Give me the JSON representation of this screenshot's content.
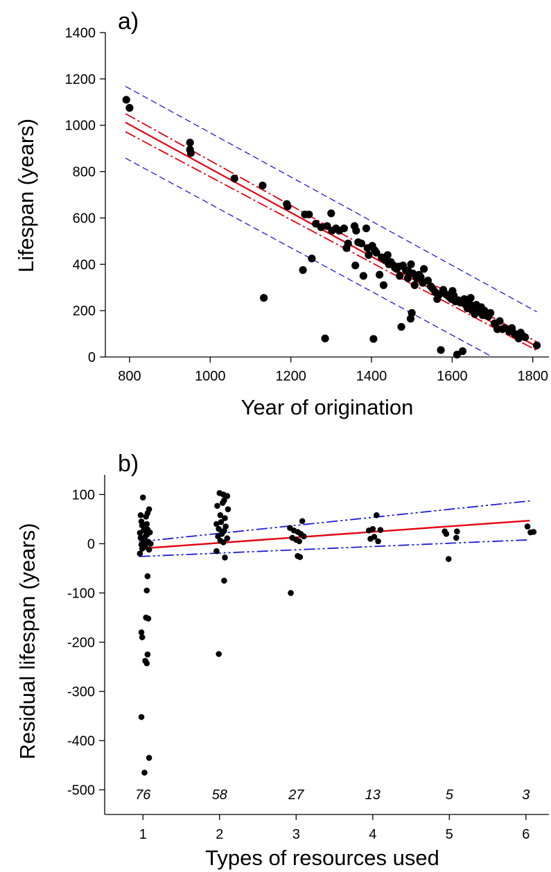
{
  "chart_data": [
    {
      "panel_label": "a)",
      "type": "scatter",
      "xlabel": "Year of origination",
      "ylabel": "Lifespan (years)",
      "xlim": [
        740,
        1840
      ],
      "ylim": [
        0,
        1400
      ],
      "xticks": [
        "800",
        "1000",
        "1200",
        "1400",
        "1600",
        "1800"
      ],
      "yticks": [
        "0",
        "200",
        "400",
        "600",
        "800",
        "1000",
        "1200",
        "1400"
      ],
      "grid": false,
      "colors": {
        "points": "#000000",
        "fit": "#e3000f",
        "ci": "#e3000f",
        "pi": "#1a1adc"
      },
      "fit_line": {
        "x": [
          790,
          1810
        ],
        "y": [
          1012,
          45
        ]
      },
      "confidence_band": {
        "upper": {
          "x": [
            790,
            1810
          ],
          "y": [
            1050,
            65
          ]
        },
        "lower": {
          "x": [
            790,
            1810
          ],
          "y": [
            972,
            28
          ]
        }
      },
      "prediction_band": {
        "upper": {
          "x": [
            790,
            1810
          ],
          "y": [
            1168,
            195
          ]
        },
        "lower": {
          "x": [
            790,
            1700
          ],
          "y": [
            858,
            0
          ]
        }
      },
      "points": [
        [
          792,
          1110
        ],
        [
          800,
          1075
        ],
        [
          950,
          925
        ],
        [
          950,
          895
        ],
        [
          952,
          880
        ],
        [
          1060,
          770
        ],
        [
          1130,
          740
        ],
        [
          1133,
          255
        ],
        [
          1190,
          660
        ],
        [
          1192,
          650
        ],
        [
          1230,
          375
        ],
        [
          1235,
          615
        ],
        [
          1245,
          615
        ],
        [
          1252,
          425
        ],
        [
          1262,
          575
        ],
        [
          1275,
          560
        ],
        [
          1285,
          80
        ],
        [
          1290,
          565
        ],
        [
          1300,
          620
        ],
        [
          1302,
          545
        ],
        [
          1312,
          555
        ],
        [
          1320,
          545
        ],
        [
          1332,
          555
        ],
        [
          1338,
          470
        ],
        [
          1342,
          490
        ],
        [
          1358,
          565
        ],
        [
          1362,
          545
        ],
        [
          1360,
          395
        ],
        [
          1367,
          495
        ],
        [
          1375,
          490
        ],
        [
          1380,
          350
        ],
        [
          1387,
          555
        ],
        [
          1390,
          470
        ],
        [
          1393,
          440
        ],
        [
          1402,
          480
        ],
        [
          1405,
          78
        ],
        [
          1408,
          460
        ],
        [
          1412,
          450
        ],
        [
          1420,
          355
        ],
        [
          1425,
          430
        ],
        [
          1430,
          310
        ],
        [
          1432,
          420
        ],
        [
          1440,
          440
        ],
        [
          1443,
          400
        ],
        [
          1448,
          410
        ],
        [
          1455,
          395
        ],
        [
          1458,
          385
        ],
        [
          1462,
          380
        ],
        [
          1468,
          390
        ],
        [
          1470,
          350
        ],
        [
          1474,
          130
        ],
        [
          1478,
          395
        ],
        [
          1485,
          375
        ],
        [
          1490,
          340
        ],
        [
          1492,
          370
        ],
        [
          1497,
          165
        ],
        [
          1498,
          400
        ],
        [
          1500,
          190
        ],
        [
          1503,
          360
        ],
        [
          1507,
          310
        ],
        [
          1512,
          340
        ],
        [
          1518,
          355
        ],
        [
          1522,
          345
        ],
        [
          1527,
          320
        ],
        [
          1530,
          380
        ],
        [
          1540,
          330
        ],
        [
          1547,
          305
        ],
        [
          1552,
          295
        ],
        [
          1558,
          280
        ],
        [
          1563,
          250
        ],
        [
          1568,
          270
        ],
        [
          1572,
          30
        ],
        [
          1578,
          290
        ],
        [
          1585,
          270
        ],
        [
          1592,
          260
        ],
        [
          1598,
          250
        ],
        [
          1601,
          285
        ],
        [
          1604,
          265
        ],
        [
          1608,
          240
        ],
        [
          1612,
          10
        ],
        [
          1615,
          245
        ],
        [
          1620,
          235
        ],
        [
          1626,
          25
        ],
        [
          1630,
          250
        ],
        [
          1634,
          225
        ],
        [
          1638,
          210
        ],
        [
          1642,
          235
        ],
        [
          1646,
          255
        ],
        [
          1650,
          200
        ],
        [
          1653,
          220
        ],
        [
          1656,
          185
        ],
        [
          1660,
          225
        ],
        [
          1664,
          205
        ],
        [
          1668,
          195
        ],
        [
          1672,
          215
        ],
        [
          1676,
          180
        ],
        [
          1680,
          200
        ],
        [
          1685,
          185
        ],
        [
          1690,
          175
        ],
        [
          1695,
          190
        ],
        [
          1705,
          145
        ],
        [
          1712,
          120
        ],
        [
          1718,
          155
        ],
        [
          1725,
          120
        ],
        [
          1730,
          125
        ],
        [
          1742,
          110
        ],
        [
          1748,
          125
        ],
        [
          1755,
          100
        ],
        [
          1760,
          95
        ],
        [
          1765,
          80
        ],
        [
          1770,
          105
        ],
        [
          1776,
          90
        ],
        [
          1781,
          85
        ],
        [
          1810,
          50
        ]
      ]
    },
    {
      "panel_label": "b)",
      "type": "scatter",
      "xlabel": "Types of resources used",
      "ylabel": "Residual lifespan (years)",
      "xlim": [
        0.5,
        6.3
      ],
      "ylim": [
        -550,
        140
      ],
      "xticks": [
        "1",
        "2",
        "3",
        "4",
        "5",
        "6"
      ],
      "yticks": [
        "100",
        "0",
        "-100",
        "-200",
        "-300",
        "-400",
        "-500"
      ],
      "grid": false,
      "colors": {
        "points": "#000000",
        "fit": "#e3000f",
        "ci": "#1a1adc"
      },
      "fit_line": {
        "x": [
          0.95,
          6.05
        ],
        "y": [
          -10,
          47
        ]
      },
      "confidence_band": {
        "upper": {
          "x": [
            0.95,
            6.05
          ],
          "y": [
            4,
            87
          ]
        },
        "lower": {
          "x": [
            0.95,
            6.05
          ],
          "y": [
            -26,
            8
          ]
        }
      },
      "sample_sizes": {
        "x": [
          1,
          2,
          3,
          4,
          5,
          6
        ],
        "labels": [
          "76",
          "58",
          "27",
          "13",
          "5",
          "3"
        ]
      },
      "points": [
        [
          1.0,
          94
        ],
        [
          0.97,
          58
        ],
        [
          0.98,
          45
        ],
        [
          0.99,
          37
        ],
        [
          1.02,
          32
        ],
        [
          1.06,
          62
        ],
        [
          1.08,
          70
        ],
        [
          1.04,
          55
        ],
        [
          1.01,
          27
        ],
        [
          0.96,
          22
        ],
        [
          1.05,
          18
        ],
        [
          1.09,
          23
        ],
        [
          0.97,
          12
        ],
        [
          1.02,
          8
        ],
        [
          1.07,
          4
        ],
        [
          1.1,
          0
        ],
        [
          0.98,
          -2
        ],
        [
          1.03,
          -6
        ],
        [
          1.08,
          -12
        ],
        [
          0.96,
          -20
        ],
        [
          1.05,
          40
        ],
        [
          1.06,
          29
        ],
        [
          1.03,
          15
        ],
        [
          1.0,
          10
        ],
        [
          1.04,
          2
        ],
        [
          0.99,
          -10
        ],
        [
          1.06,
          -66
        ],
        [
          1.05,
          -95
        ],
        [
          0.98,
          -180
        ],
        [
          1.04,
          -150
        ],
        [
          1.07,
          -152
        ],
        [
          0.99,
          -190
        ],
        [
          1.06,
          -225
        ],
        [
          1.03,
          -238
        ],
        [
          1.05,
          -243
        ],
        [
          0.98,
          -352
        ],
        [
          1.08,
          -435
        ],
        [
          1.02,
          -465
        ],
        [
          2.0,
          103
        ],
        [
          2.05,
          100
        ],
        [
          2.1,
          97
        ],
        [
          2.06,
          88
        ],
        [
          2.04,
          83
        ],
        [
          2.11,
          70
        ],
        [
          1.97,
          77
        ],
        [
          2.01,
          58
        ],
        [
          2.07,
          52
        ],
        [
          2.02,
          44
        ],
        [
          1.96,
          40
        ],
        [
          2.08,
          35
        ],
        [
          1.99,
          30
        ],
        [
          2.06,
          26
        ],
        [
          2.03,
          20
        ],
        [
          1.98,
          15
        ],
        [
          2.1,
          11
        ],
        [
          2.01,
          6
        ],
        [
          2.05,
          3
        ],
        [
          1.96,
          -15
        ],
        [
          2.07,
          -28
        ],
        [
          2.06,
          -75
        ],
        [
          1.99,
          -224
        ],
        [
          2.92,
          32
        ],
        [
          2.97,
          27
        ],
        [
          3.02,
          24
        ],
        [
          3.08,
          46
        ],
        [
          3.1,
          15
        ],
        [
          2.95,
          12
        ],
        [
          3.0,
          8
        ],
        [
          3.04,
          5
        ],
        [
          3.06,
          20
        ],
        [
          3.02,
          -25
        ],
        [
          3.05,
          -27
        ],
        [
          2.93,
          -100
        ],
        [
          3.95,
          27
        ],
        [
          4.0,
          30
        ],
        [
          4.05,
          58
        ],
        [
          4.1,
          28
        ],
        [
          4.02,
          14
        ],
        [
          3.97,
          10
        ],
        [
          4.07,
          5
        ],
        [
          4.94,
          25
        ],
        [
          5.1,
          25
        ],
        [
          4.96,
          20
        ],
        [
          5.09,
          12
        ],
        [
          4.99,
          -31
        ],
        [
          6.02,
          35
        ],
        [
          6.06,
          23
        ],
        [
          6.1,
          24
        ]
      ]
    }
  ]
}
